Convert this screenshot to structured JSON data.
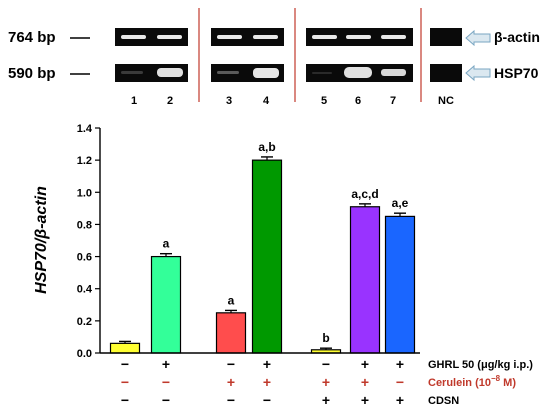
{
  "gel": {
    "marker_top": "764 bp",
    "marker_bottom": "590 bp",
    "label_top": "β-actin",
    "label_bottom": "HSP70",
    "lanes": [
      "1",
      "2",
      "3",
      "4",
      "5",
      "6",
      "7",
      "NC"
    ]
  },
  "chart_data": {
    "type": "bar",
    "ylabel": "HSP70/β-actin",
    "ylim": [
      0,
      1.4
    ],
    "yticks": [
      "0.0",
      "0.2",
      "0.4",
      "0.6",
      "0.8",
      "1.0",
      "1.2",
      "1.4"
    ],
    "bars": [
      {
        "value": 0.06,
        "error": 0.012,
        "color": "#ffff33",
        "annotation": ""
      },
      {
        "value": 0.6,
        "error": 0.018,
        "color": "#33ff99",
        "annotation": "a"
      },
      {
        "value": 0.25,
        "error": 0.015,
        "color": "#ff4d4d",
        "annotation": "a"
      },
      {
        "value": 1.2,
        "error": 0.02,
        "color": "#009900",
        "annotation": "a,b"
      },
      {
        "value": 0.02,
        "error": 0.01,
        "color": "#ffff33",
        "annotation": "b"
      },
      {
        "value": 0.91,
        "error": 0.018,
        "color": "#9933ff",
        "annotation": "a,c,d"
      },
      {
        "value": 0.85,
        "error": 0.02,
        "color": "#1a66ff",
        "annotation": "a,e"
      }
    ],
    "treatments": [
      {
        "label": "GHRL 50 (μg/kg i.p.)",
        "color": "#000000",
        "signs": [
          "−",
          "+",
          "−",
          "+",
          "−",
          "+",
          "+"
        ]
      },
      {
        "label_main": "Cerulein (10",
        "label_sup": "−8",
        "label_tail": " M)",
        "color": "#c0392b",
        "signs": [
          "−",
          "−",
          "+",
          "+",
          "+",
          "+",
          "−"
        ]
      },
      {
        "label": "CDSN",
        "color": "#000000",
        "signs": [
          "−",
          "−",
          "−",
          "−",
          "+",
          "+",
          "+"
        ]
      }
    ]
  }
}
